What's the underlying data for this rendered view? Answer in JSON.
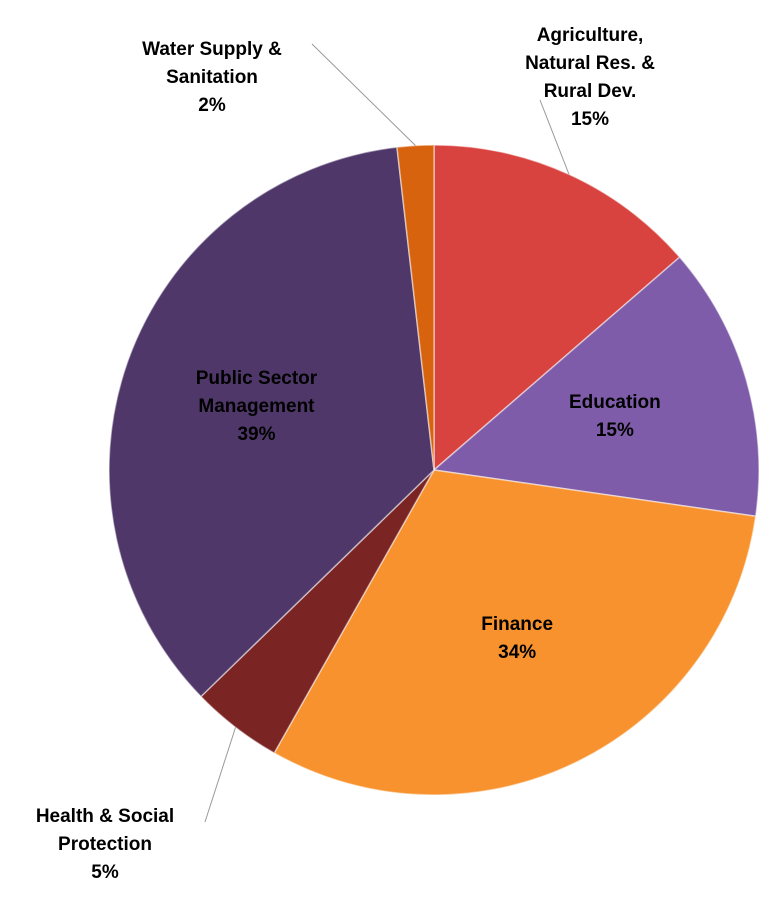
{
  "chart_data": {
    "type": "pie",
    "categories": [
      "Agriculture, Natural Res. & Rural Dev.",
      "Education",
      "Finance",
      "Health & Social Protection",
      "Public Sector Management",
      "Water Supply & Sanitation"
    ],
    "values": [
      15,
      15,
      34,
      5,
      39,
      2
    ],
    "value_labels": [
      "15%",
      "15%",
      "34%",
      "5%",
      "39%",
      "2%"
    ],
    "colors": [
      "#d9433f",
      "#7e5ca9",
      "#f7922e",
      "#7b2424",
      "#4f3869",
      "#d8630e"
    ]
  }
}
